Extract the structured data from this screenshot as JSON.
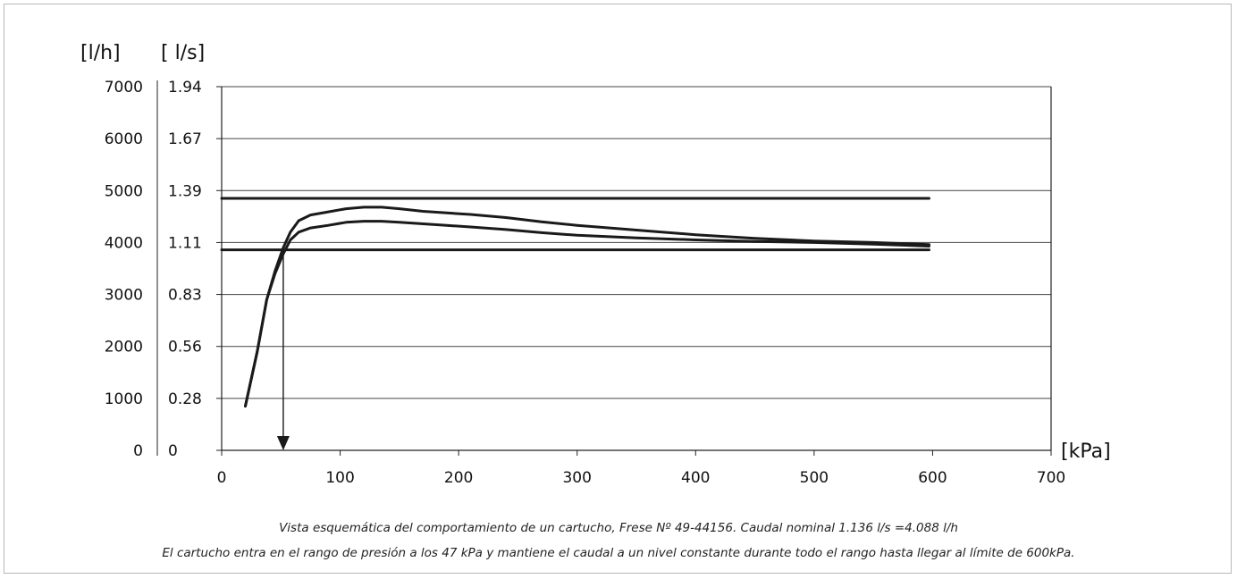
{
  "chart_data": {
    "type": "line",
    "ylabel_left": "[l/h]",
    "ylabel_right": "[ l/s]",
    "xlabel": "[kPa]",
    "xlim": [
      0,
      700
    ],
    "ylim": [
      0,
      7000
    ],
    "x_ticks": [
      "0",
      "100",
      "200",
      "300",
      "400",
      "500",
      "600",
      "700"
    ],
    "y_ticks_lh": [
      "0",
      "1000",
      "2000",
      "3000",
      "4000",
      "5000",
      "6000",
      "7000"
    ],
    "y_ticks_ls": [
      "0",
      "0.28",
      "0.56",
      "0.83",
      "1.11",
      "1.39",
      "1.67",
      "1.94"
    ],
    "grid": true,
    "series": [
      {
        "x": [
          20,
          30,
          38,
          45,
          52,
          58,
          65,
          75,
          90,
          105,
          120,
          135,
          150,
          170,
          190,
          210,
          240,
          270,
          300,
          350,
          400,
          450,
          500,
          550,
          597
        ],
        "y": [
          850,
          1900,
          2900,
          3450,
          3900,
          4200,
          4420,
          4530,
          4590,
          4650,
          4680,
          4680,
          4650,
          4600,
          4570,
          4540,
          4480,
          4400,
          4330,
          4240,
          4150,
          4080,
          4030,
          4000,
          3960
        ]
      },
      {
        "x": [
          20,
          30,
          38,
          45,
          52,
          58,
          65,
          75,
          90,
          105,
          120,
          135,
          150,
          170,
          190,
          210,
          240,
          270,
          300,
          350,
          400,
          450,
          500,
          550,
          597
        ],
        "y": [
          850,
          1900,
          2900,
          3400,
          3780,
          4050,
          4200,
          4280,
          4330,
          4390,
          4410,
          4410,
          4390,
          4360,
          4330,
          4300,
          4250,
          4190,
          4140,
          4090,
          4050,
          4020,
          4000,
          3970,
          3930
        ]
      },
      {
        "x": [
          0,
          597
        ],
        "y": [
          4850,
          4850
        ]
      },
      {
        "x": [
          0,
          597
        ],
        "y": [
          3860,
          3860
        ]
      }
    ],
    "annotations": [
      {
        "type": "arrow",
        "x": 52,
        "y_from": 3850,
        "y_to": 0
      }
    ]
  },
  "caption": {
    "line1": "Vista esquemática del comportamiento de un cartucho, Frese Nº 49-44156. Caudal nominal 1.136 l/s =4.088 l/h",
    "line2": "El cartucho entra en el rango de presión a los 47 kPa y mantiene el caudal a un nivel constante durante todo el rango hasta llegar al límite de 600kPa."
  }
}
